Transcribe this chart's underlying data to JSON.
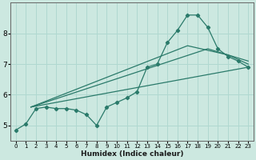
{
  "xlabel": "Humidex (Indice chaleur)",
  "bg_color": "#cce8e0",
  "grid_color": "#b0d8d0",
  "line_color": "#2a7a6a",
  "xlim": [
    -0.5,
    23.5
  ],
  "ylim": [
    4.5,
    9.0
  ],
  "xticks": [
    0,
    1,
    2,
    3,
    4,
    5,
    6,
    7,
    8,
    9,
    10,
    11,
    12,
    13,
    14,
    15,
    16,
    17,
    18,
    19,
    20,
    21,
    22,
    23
  ],
  "yticks": [
    5,
    6,
    7,
    8
  ],
  "series1_x": [
    0,
    1,
    2,
    3,
    4,
    5,
    6,
    7,
    8,
    9,
    10,
    11,
    12,
    13,
    14,
    15,
    16,
    17,
    18,
    19,
    20,
    21,
    22,
    23
  ],
  "series1_y": [
    4.85,
    5.05,
    5.55,
    5.6,
    5.55,
    5.55,
    5.5,
    5.35,
    5.0,
    5.6,
    5.75,
    5.9,
    6.1,
    6.9,
    7.0,
    7.7,
    8.1,
    8.6,
    8.6,
    8.2,
    7.5,
    7.25,
    7.1,
    6.9
  ],
  "series2_x": [
    1.5,
    23
  ],
  "series2_y": [
    5.6,
    6.9
  ],
  "series3_x": [
    1.5,
    19,
    23
  ],
  "series3_y": [
    5.6,
    7.5,
    7.1
  ],
  "series4_x": [
    1.5,
    17,
    21,
    23
  ],
  "series4_y": [
    5.6,
    7.6,
    7.3,
    7.0
  ]
}
